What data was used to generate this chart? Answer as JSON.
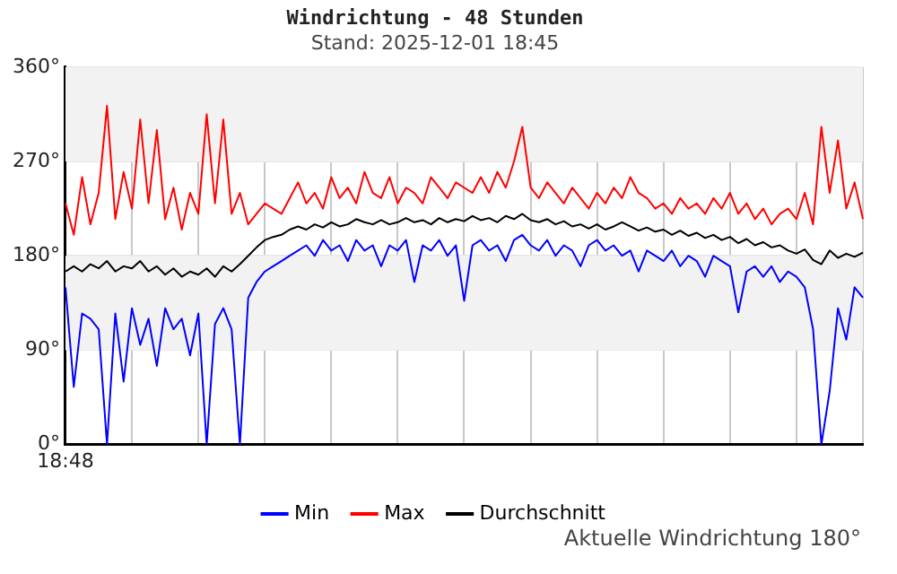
{
  "chart_data": {
    "type": "line",
    "title": "Windrichtung - 48 Stunden",
    "subtitle": "Stand: 2025-12-01 18:45",
    "annotations": [
      "Aktuelle Windrichtung 180°"
    ],
    "categories": [
      "18:48",
      null,
      null,
      null,
      null,
      null,
      null,
      null,
      null,
      null,
      null,
      null,
      null,
      null,
      null,
      null,
      null,
      null,
      null,
      null,
      null,
      null,
      null,
      null,
      null,
      null,
      null,
      null,
      null,
      null,
      null,
      null,
      null,
      null,
      null,
      null,
      null,
      null,
      null,
      null,
      null,
      null,
      null,
      null,
      null,
      null,
      null,
      null,
      null,
      null,
      null,
      null,
      null,
      null,
      null,
      null,
      null,
      null,
      null,
      null,
      null,
      null,
      null,
      null,
      null,
      null,
      null,
      null,
      null,
      null,
      null,
      null,
      null,
      null,
      null,
      null,
      null,
      null,
      null,
      null,
      null,
      null,
      null,
      null,
      null,
      null,
      null,
      null,
      null,
      null,
      null,
      null,
      null,
      null,
      null,
      null,
      null
    ],
    "series": [
      {
        "name": "Min",
        "color": "#0000ff",
        "values": [
          150,
          55,
          125,
          120,
          110,
          0,
          125,
          60,
          130,
          95,
          120,
          75,
          130,
          110,
          120,
          85,
          125,
          0,
          115,
          130,
          110,
          0,
          140,
          155,
          165,
          170,
          175,
          180,
          185,
          190,
          180,
          195,
          185,
          190,
          175,
          195,
          185,
          190,
          170,
          190,
          185,
          195,
          155,
          190,
          185,
          195,
          180,
          190,
          137,
          190,
          195,
          185,
          190,
          175,
          195,
          200,
          190,
          185,
          195,
          180,
          190,
          185,
          170,
          190,
          195,
          185,
          190,
          180,
          185,
          165,
          185,
          180,
          175,
          185,
          170,
          180,
          175,
          160,
          180,
          175,
          170,
          126,
          165,
          170,
          160,
          170,
          155,
          165,
          160,
          150,
          110,
          0,
          51,
          130,
          100,
          150,
          140
        ]
      },
      {
        "name": "Max",
        "color": "#ff0000",
        "values": [
          230,
          200,
          255,
          210,
          240,
          323,
          215,
          260,
          225,
          310,
          230,
          300,
          215,
          245,
          205,
          240,
          220,
          315,
          230,
          310,
          220,
          240,
          210,
          220,
          230,
          225,
          220,
          235,
          250,
          230,
          240,
          225,
          255,
          235,
          245,
          230,
          260,
          240,
          235,
          255,
          230,
          245,
          240,
          230,
          255,
          245,
          235,
          250,
          245,
          240,
          255,
          240,
          260,
          245,
          270,
          303,
          245,
          235,
          250,
          240,
          230,
          245,
          235,
          225,
          240,
          230,
          245,
          235,
          255,
          240,
          235,
          225,
          230,
          220,
          235,
          225,
          230,
          220,
          235,
          225,
          240,
          220,
          230,
          215,
          225,
          210,
          220,
          225,
          215,
          240,
          210,
          303,
          240,
          290,
          225,
          250,
          215
        ]
      },
      {
        "name": "Durchschnitt",
        "color": "#000000",
        "values": [
          165,
          170,
          165,
          172,
          168,
          175,
          165,
          170,
          168,
          175,
          165,
          170,
          162,
          168,
          160,
          165,
          162,
          168,
          160,
          170,
          165,
          172,
          180,
          188,
          195,
          198,
          200,
          205,
          208,
          205,
          210,
          207,
          212,
          208,
          210,
          215,
          212,
          210,
          214,
          210,
          212,
          216,
          212,
          214,
          210,
          216,
          212,
          215,
          213,
          218,
          214,
          216,
          212,
          218,
          215,
          220,
          214,
          212,
          215,
          210,
          213,
          208,
          210,
          206,
          210,
          205,
          208,
          212,
          208,
          204,
          207,
          203,
          205,
          200,
          204,
          199,
          202,
          197,
          200,
          195,
          198,
          192,
          196,
          190,
          193,
          188,
          190,
          185,
          182,
          186,
          176,
          172,
          185,
          178,
          182,
          179,
          183
        ]
      }
    ],
    "ylim": [
      0,
      360
    ],
    "yticks": [
      {
        "value": 0,
        "label": "0°"
      },
      {
        "value": 90,
        "label": "90°"
      },
      {
        "value": 180,
        "label": "180°"
      },
      {
        "value": 270,
        "label": "270°"
      },
      {
        "value": 360,
        "label": "360°"
      }
    ],
    "bands": [
      {
        "axis": "y",
        "from": 90,
        "to": 180,
        "color": "#f2f2f2"
      },
      {
        "axis": "y",
        "from": 270,
        "to": 360,
        "color": "#f2f2f2"
      }
    ],
    "grid": true,
    "legend": "bottom",
    "marker": "none",
    "line_style": "solid"
  }
}
